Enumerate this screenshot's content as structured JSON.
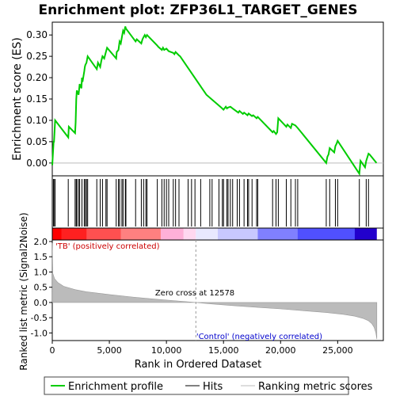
{
  "chart_data": {
    "type": "line",
    "title": "Enrichment plot: ZFP36L1_TARGET_GENES",
    "top_panel": {
      "ylabel": "Enrichment score (ES)",
      "ylim": [
        -0.03,
        0.33
      ],
      "yticks": [
        0.0,
        0.05,
        0.1,
        0.15,
        0.2,
        0.25,
        0.3
      ],
      "ytick_labels": [
        "0.00",
        "0.05",
        "0.10",
        "0.15",
        "0.20",
        "0.25",
        "0.30"
      ],
      "series": [
        {
          "name": "Enrichment profile",
          "color": "#00cc00",
          "x": [
            0,
            120,
            150,
            250,
            1400,
            1450,
            2000,
            2050,
            2100,
            2150,
            2300,
            2400,
            2550,
            2600,
            2650,
            2800,
            2850,
            2900,
            3000,
            3100,
            3900,
            4000,
            4200,
            4300,
            4400,
            4550,
            4700,
            4800,
            5600,
            5650,
            5800,
            5900,
            6000,
            6100,
            6200,
            6300,
            6400,
            6450,
            7300,
            7400,
            7800,
            7900,
            8000,
            8100,
            8200,
            8300,
            9200,
            9300,
            9600,
            9700,
            9800,
            10000,
            10200,
            10600,
            10700,
            10800,
            11100,
            11200,
            13500,
            14800,
            15000,
            15200,
            15300,
            15400,
            15600,
            15800,
            16300,
            16400,
            16700,
            16800,
            17100,
            17200,
            17500,
            17600,
            17900,
            18000,
            19300,
            19400,
            19600,
            19700,
            19800,
            20500,
            20600,
            20900,
            21000,
            21300,
            21500,
            24000,
            24100,
            24200,
            24300,
            24700,
            24800,
            24900,
            25000,
            26900,
            27000,
            27400,
            27500,
            27700,
            27800,
            28400
          ],
          "y": [
            -0.005,
            0.05,
            0.05,
            0.1,
            0.06,
            0.085,
            0.07,
            0.095,
            0.15,
            0.17,
            0.16,
            0.185,
            0.175,
            0.2,
            0.19,
            0.215,
            0.225,
            0.23,
            0.235,
            0.25,
            0.22,
            0.235,
            0.225,
            0.24,
            0.25,
            0.245,
            0.26,
            0.27,
            0.245,
            0.26,
            0.265,
            0.285,
            0.28,
            0.295,
            0.31,
            0.305,
            0.32,
            0.315,
            0.285,
            0.29,
            0.28,
            0.29,
            0.295,
            0.3,
            0.295,
            0.3,
            0.275,
            0.272,
            0.265,
            0.27,
            0.265,
            0.268,
            0.262,
            0.258,
            0.255,
            0.26,
            0.252,
            0.25,
            0.16,
            0.13,
            0.125,
            0.132,
            0.128,
            0.13,
            0.132,
            0.128,
            0.118,
            0.122,
            0.115,
            0.118,
            0.112,
            0.116,
            0.11,
            0.112,
            0.105,
            0.108,
            0.072,
            0.075,
            0.068,
            0.072,
            0.105,
            0.085,
            0.09,
            0.082,
            0.092,
            0.088,
            0.082,
            0.0,
            0.015,
            0.02,
            0.035,
            0.025,
            0.04,
            0.045,
            0.052,
            -0.025,
            0.005,
            -0.01,
            0.005,
            0.022,
            0.02,
            0.0
          ]
        }
      ]
    },
    "hits_panel": {
      "hit_positions": [
        100,
        150,
        250,
        1400,
        2000,
        2100,
        2150,
        2300,
        2400,
        2600,
        2800,
        2900,
        3000,
        3100,
        3900,
        4200,
        4400,
        4700,
        4800,
        5600,
        5800,
        5900,
        6100,
        6200,
        6400,
        6450,
        7300,
        7800,
        8000,
        8200,
        8300,
        9200,
        9600,
        9800,
        10000,
        10200,
        10600,
        10800,
        11100,
        11900,
        12200,
        12500,
        13000,
        13800,
        14000,
        14600,
        14900,
        15000,
        15300,
        15400,
        15600,
        15800,
        16200,
        16400,
        16800,
        17100,
        17200,
        17500,
        17900,
        18000,
        19300,
        19600,
        19800,
        20500,
        20900,
        21300,
        21500,
        24000,
        24300,
        24800,
        25000,
        26900,
        27500,
        27700
      ]
    },
    "heatmap_bar": {
      "left_color": "#ff0000",
      "middle_color": "#ffffff",
      "right_color": "#0000ff",
      "zero_cross_rank": 12578
    },
    "bottom_panel": {
      "ylabel": "Ranked list metric (Signal2Noise)",
      "ylim": [
        -1.25,
        2.05
      ],
      "yticks": [
        -1.0,
        -0.5,
        0.0,
        0.5,
        1.0,
        1.5,
        2.0
      ],
      "ytick_labels": [
        "-1.0",
        "-0.5",
        "0.0",
        "0.5",
        "1.0",
        "1.5",
        "2.0"
      ],
      "metric_x": [
        0,
        50,
        200,
        500,
        1000,
        2000,
        3000,
        5000,
        7000,
        9000,
        11000,
        12578,
        14000,
        16000,
        18000,
        20000,
        22000,
        24000,
        25500,
        26500,
        27200,
        27700,
        28000,
        28200,
        28350,
        28430
      ],
      "metric_y": [
        1.95,
        0.95,
        0.78,
        0.65,
        0.53,
        0.42,
        0.35,
        0.26,
        0.18,
        0.11,
        0.05,
        0.0,
        -0.05,
        -0.11,
        -0.16,
        -0.21,
        -0.27,
        -0.33,
        -0.39,
        -0.45,
        -0.52,
        -0.6,
        -0.7,
        -0.82,
        -1.0,
        -1.2
      ],
      "pos_label": "'TB' (positively correlated)",
      "neg_label": "'Control' (negatively correlated)",
      "zero_cross_text": "Zero cross at 12578"
    },
    "xlabel": "Rank in Ordered Dataset",
    "xlim": [
      0,
      29000
    ],
    "xticks": [
      0,
      5000,
      10000,
      15000,
      20000,
      25000
    ],
    "xtick_labels": [
      "0",
      "5,000",
      "10,000",
      "15,000",
      "20,000",
      "25,000"
    ],
    "legend": {
      "placement": "bottom",
      "items": [
        {
          "label": "Enrichment profile",
          "color": "#00cc00"
        },
        {
          "label": "Hits",
          "color": "#000000"
        },
        {
          "label": "Ranking metric scores",
          "color": "#bbbbbb"
        }
      ]
    }
  }
}
